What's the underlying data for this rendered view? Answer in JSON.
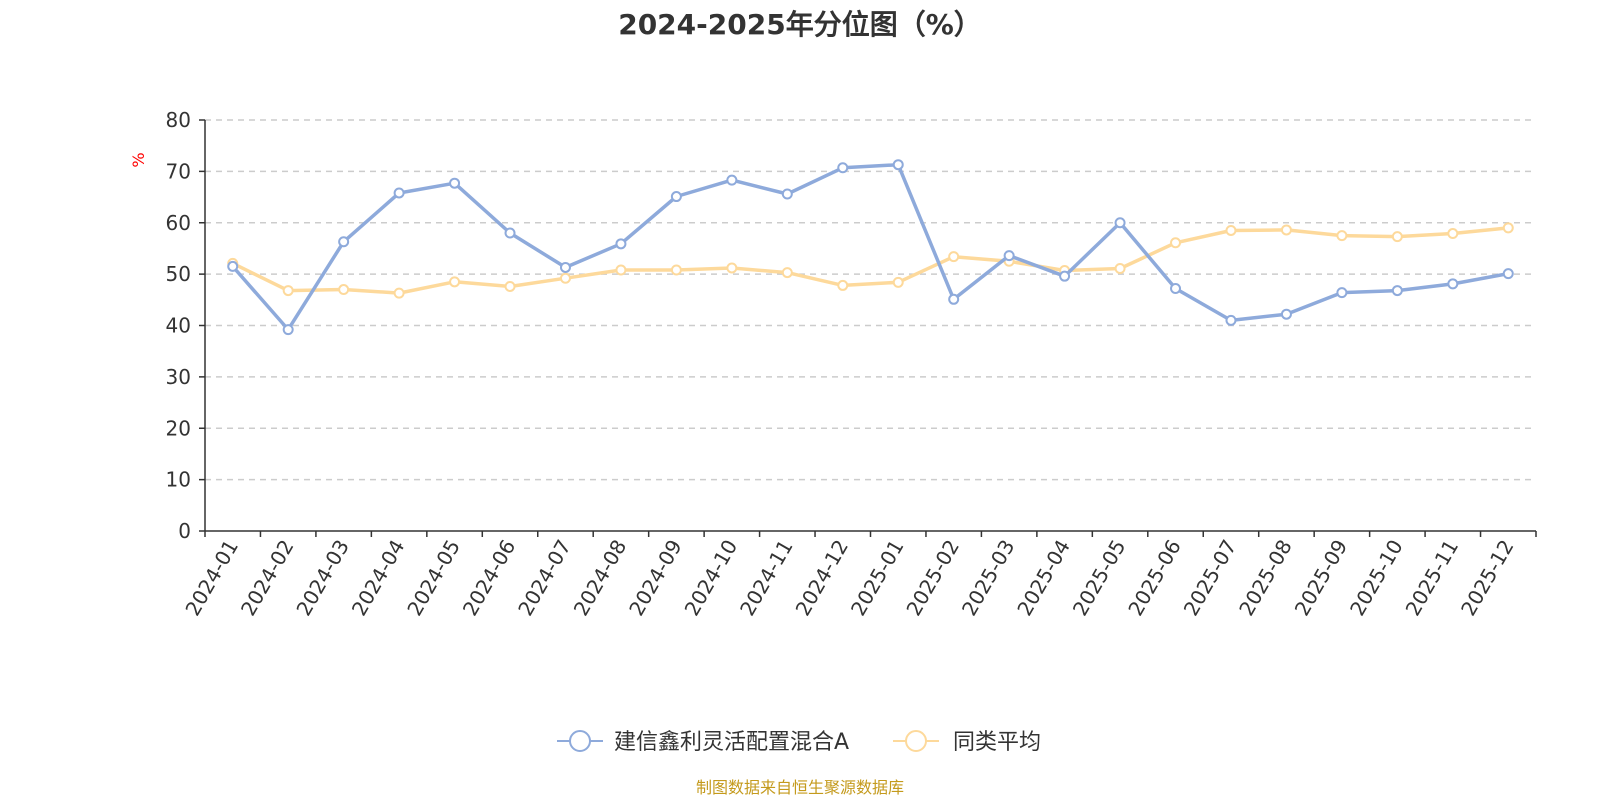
{
  "chart_data": {
    "type": "line",
    "title": "2024-2025年分位图（%）",
    "ylabel": "%",
    "xlabel": "",
    "ylim": [
      0,
      80
    ],
    "yticks": [
      0,
      10,
      20,
      30,
      40,
      50,
      60,
      70,
      80
    ],
    "grid": true,
    "legend_position": "bottom-center",
    "categories": [
      "2024-01",
      "2024-02",
      "2024-03",
      "2024-04",
      "2024-05",
      "2024-06",
      "2024-07",
      "2024-08",
      "2024-09",
      "2024-10",
      "2024-11",
      "2024-12",
      "2025-01",
      "2025-02",
      "2025-03",
      "2025-04",
      "2025-05",
      "2025-06",
      "2025-07",
      "2025-08",
      "2025-09",
      "2025-10",
      "2025-11",
      "2025-12"
    ],
    "series": [
      {
        "name": "建信鑫利灵活配置混合A",
        "color": "#8eaadb",
        "values": [
          51.5,
          39.2,
          56.3,
          65.8,
          67.7,
          58.0,
          51.3,
          55.9,
          65.1,
          68.3,
          65.6,
          70.7,
          71.3,
          45.1,
          53.6,
          49.6,
          60.0,
          47.2,
          41.0,
          42.2,
          46.4,
          46.8,
          48.1,
          50.1
        ]
      },
      {
        "name": "同类平均",
        "color": "#fdd99b",
        "values": [
          52.1,
          46.8,
          47.0,
          46.3,
          48.5,
          47.6,
          49.2,
          50.8,
          50.8,
          51.2,
          50.3,
          47.8,
          48.4,
          53.4,
          52.5,
          50.7,
          51.1,
          56.1,
          58.5,
          58.6,
          57.5,
          57.3,
          57.9,
          59.0
        ]
      }
    ],
    "source": "制图数据来自恒生聚源数据库"
  },
  "colors": {
    "axis": "#333333",
    "grid": "#cccccc",
    "unit_label": "#ff0000",
    "source_label": "#c49a1c"
  }
}
